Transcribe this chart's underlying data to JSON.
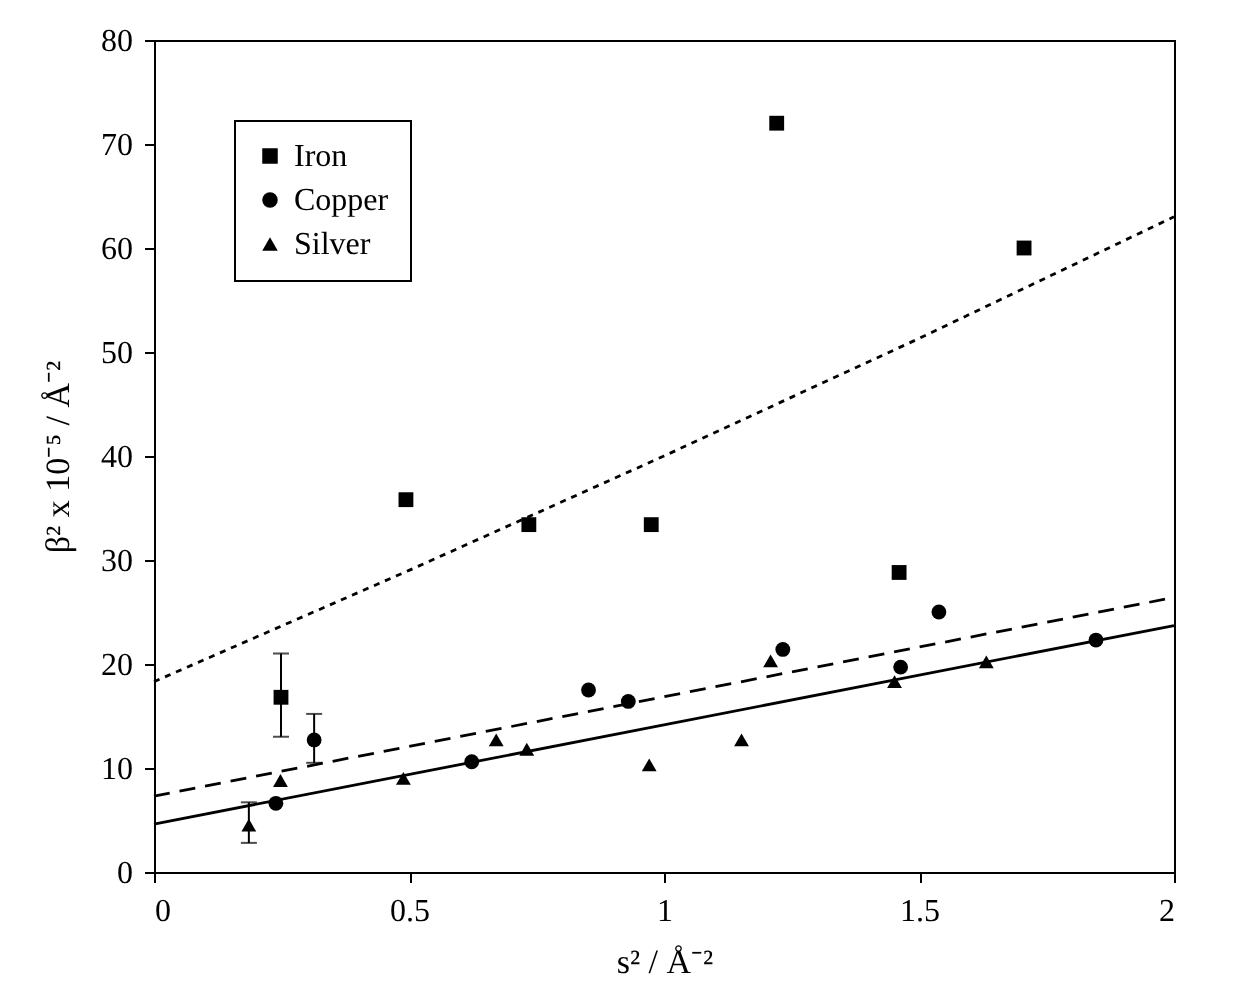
{
  "chart_data": {
    "type": "scatter",
    "xlabel": "s² / Å⁻²",
    "ylabel": "β² x 10⁻⁵ / Å⁻²",
    "xlim": [
      0,
      2
    ],
    "xticks": [
      0,
      0.5,
      1,
      1.5,
      2
    ],
    "ylim": [
      0,
      80
    ],
    "yticks": [
      0,
      10,
      20,
      30,
      40,
      50,
      60,
      70,
      80
    ],
    "grid": false,
    "legend": "top left",
    "series": [
      {
        "name": "Iron",
        "marker": "square",
        "color": "#000000",
        "x": [
          0.249,
          0.494,
          0.735,
          0.975,
          1.221,
          1.461,
          1.706
        ],
        "values": [
          16.8,
          35.8,
          33.4,
          33.4,
          72.0,
          28.8,
          60.0
        ],
        "errors": [
          [
            13,
            21
          ],
          null,
          null,
          null,
          null,
          null,
          null
        ]
      },
      {
        "name": "Copper",
        "marker": "circle",
        "color": "#000000",
        "x": [
          0.239,
          0.314,
          0.623,
          0.852,
          0.93,
          1.233,
          1.464,
          1.539,
          1.847
        ],
        "values": [
          6.6,
          12.7,
          10.6,
          17.5,
          16.4,
          21.4,
          19.7,
          25.0,
          22.3
        ],
        "errors": [
          null,
          [
            10.5,
            15.2
          ],
          null,
          null,
          null,
          null,
          null,
          null,
          null
        ]
      },
      {
        "name": "Silver",
        "marker": "triangle",
        "color": "#000000",
        "x": [
          0.186,
          0.248,
          0.489,
          0.671,
          0.731,
          0.971,
          1.152,
          1.209,
          1.452,
          1.632
        ],
        "values": [
          4.5,
          8.8,
          9.0,
          12.7,
          11.8,
          10.3,
          12.7,
          20.3,
          18.3,
          20.2
        ],
        "errors": [
          [
            2.8,
            6.7
          ],
          null,
          null,
          null,
          null,
          null,
          null,
          null,
          null,
          null
        ]
      },
      {
        "type": "line",
        "line_style": "dotted",
        "color": "#000000",
        "x": [
          0,
          0.5,
          1,
          1.5,
          2
        ],
        "values": [
          18.3,
          29,
          40,
          51.3,
          63
        ]
      },
      {
        "type": "line",
        "line_style": "dashed",
        "color": "#000000",
        "x": [
          0,
          2
        ],
        "values": [
          7.3,
          26.4
        ]
      },
      {
        "type": "line",
        "line_style": "solid",
        "color": "#000000",
        "x": [
          0,
          2
        ],
        "values": [
          4.6,
          23.7
        ]
      }
    ]
  }
}
